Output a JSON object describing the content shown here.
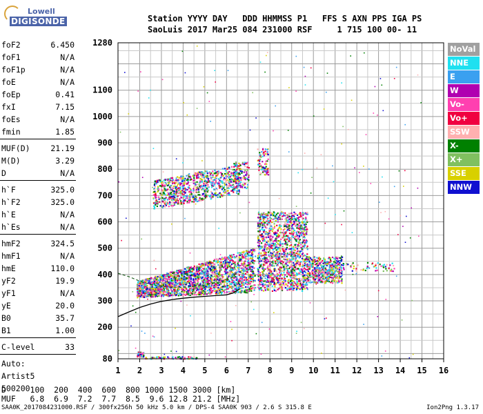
{
  "logo": {
    "line1": "Lowell",
    "line2": "DIGISONDE"
  },
  "header": {
    "line1": "Station YYYY DAY   DDD HHMMSS P1   FFS S AXN PPS IGA PS",
    "line2": "SaoLuis 2017 Mar25 084 231000 RSF     1 715 100 00- 11"
  },
  "params": {
    "g1": [
      {
        "k": "foF2",
        "v": "6.450"
      },
      {
        "k": "foF1",
        "v": "N/A"
      },
      {
        "k": "foF1p",
        "v": "N/A"
      },
      {
        "k": "foE",
        "v": "N/A"
      },
      {
        "k": "foEp",
        "v": "0.41"
      },
      {
        "k": "fxI",
        "v": "7.15"
      },
      {
        "k": "foEs",
        "v": "N/A"
      },
      {
        "k": "fmin",
        "v": "1.85"
      }
    ],
    "g2": [
      {
        "k": "MUF(D)",
        "v": "21.19"
      },
      {
        "k": "M(D)",
        "v": "3.29"
      },
      {
        "k": "D",
        "v": "N/A"
      }
    ],
    "g3": [
      {
        "k": "h`F",
        "v": "325.0"
      },
      {
        "k": "h`F2",
        "v": "325.0"
      },
      {
        "k": "h`E",
        "v": "N/A"
      },
      {
        "k": "h`Es",
        "v": "N/A"
      }
    ],
    "g4": [
      {
        "k": "hmF2",
        "v": "324.5"
      },
      {
        "k": "hmF1",
        "v": "N/A"
      },
      {
        "k": "hmE",
        "v": "110.0"
      },
      {
        "k": "yF2",
        "v": "19.9"
      },
      {
        "k": "yF1",
        "v": "N/A"
      },
      {
        "k": "yE",
        "v": "20.0"
      },
      {
        "k": "B0",
        "v": "35.7"
      },
      {
        "k": "B1",
        "v": "1.00"
      }
    ],
    "g5": [
      {
        "k": "C-level",
        "v": "33"
      }
    ],
    "auto": [
      "Auto:",
      "Artist5",
      "500200"
    ]
  },
  "legend": [
    {
      "label": "NoVal",
      "color": "#a0a0a0"
    },
    {
      "label": "NNE",
      "color": "#1fe0f0"
    },
    {
      "label": "E",
      "color": "#3aa0f0"
    },
    {
      "label": "W",
      "color": "#b000b0"
    },
    {
      "label": "Vo-",
      "color": "#ff40b0"
    },
    {
      "label": "Vo+",
      "color": "#f00040"
    },
    {
      "label": "SSW",
      "color": "#ffb0b0"
    },
    {
      "label": "X-",
      "color": "#008000"
    },
    {
      "label": "X+",
      "color": "#80c060"
    },
    {
      "label": "SSE",
      "color": "#d8d000"
    },
    {
      "label": "NNW",
      "color": "#1010d0"
    }
  ],
  "dmuf": {
    "d_line": "D     100  200  400  600  800 1000 1500 3000 [km]",
    "muf_line": "MUF   6.8  6.9  7.2  7.7  8.5  9.6 12.8 21.2 [MHz]"
  },
  "footer": {
    "left": "SAA0K_2017084231000.RSF / 300fx256h 50 kHz 5.0 km / DPS-4 SAA0K 903 / 2.6 S 315.8 E",
    "right": "Ion2Png 1.3.17"
  },
  "chart_data": {
    "type": "scatter",
    "title": "",
    "xlabel": "",
    "ylabel": "",
    "xlim": [
      1,
      16
    ],
    "ylim": [
      80,
      1280
    ],
    "y_ticks": [
      80,
      200,
      300,
      400,
      500,
      600,
      700,
      800,
      900,
      1000,
      1100,
      1280
    ],
    "x_ticks": [
      1,
      2,
      3,
      4,
      5,
      6,
      7,
      8,
      9,
      10,
      11,
      12,
      13,
      14,
      15,
      16
    ],
    "grid": true,
    "profile_curve": {
      "x": [
        1.0,
        1.5,
        2.0,
        2.5,
        3.0,
        3.5,
        4.0,
        4.5,
        5.0,
        5.5,
        6.0,
        6.3,
        6.6
      ],
      "y": [
        240,
        258,
        275,
        288,
        298,
        305,
        310,
        314,
        317,
        320,
        323,
        330,
        345
      ]
    },
    "trace_curve": {
      "x": [
        1.0,
        1.5,
        2.0,
        2.5,
        3.0,
        3.5,
        4.0,
        4.5,
        5.0,
        5.5,
        6.0,
        6.3,
        6.5
      ],
      "y": [
        405,
        392,
        375,
        362,
        355,
        352,
        352,
        355,
        360,
        368,
        378,
        392,
        410
      ]
    },
    "echo_regions": [
      {
        "x": [
          1.85,
          7.3
        ],
        "y": [
          320,
          460
        ],
        "n": 2200
      },
      {
        "x": [
          2.6,
          6.6
        ],
        "y": [
          650,
          820
        ],
        "n": 900
      },
      {
        "x": [
          7.4,
          9.7
        ],
        "y": [
          340,
          640
        ],
        "n": 1500
      },
      {
        "x": [
          9.7,
          11.3
        ],
        "y": [
          370,
          470
        ],
        "n": 500
      },
      {
        "x": [
          1.85,
          2.15
        ],
        "y": [
          90,
          108
        ],
        "n": 60
      },
      {
        "x": [
          2.2,
          4.6
        ],
        "y": [
          82,
          90
        ],
        "n": 60
      },
      {
        "x": [
          6.3,
          7.0
        ],
        "y": [
          730,
          830
        ],
        "n": 120
      },
      {
        "x": [
          7.4,
          7.9
        ],
        "y": [
          780,
          880
        ],
        "n": 80
      },
      {
        "x": [
          11.3,
          13.7
        ],
        "y": [
          415,
          448
        ],
        "n": 60
      },
      {
        "x": [
          1.0,
          15.0
        ],
        "y": [
          82,
          1270
        ],
        "n": 200
      }
    ]
  }
}
